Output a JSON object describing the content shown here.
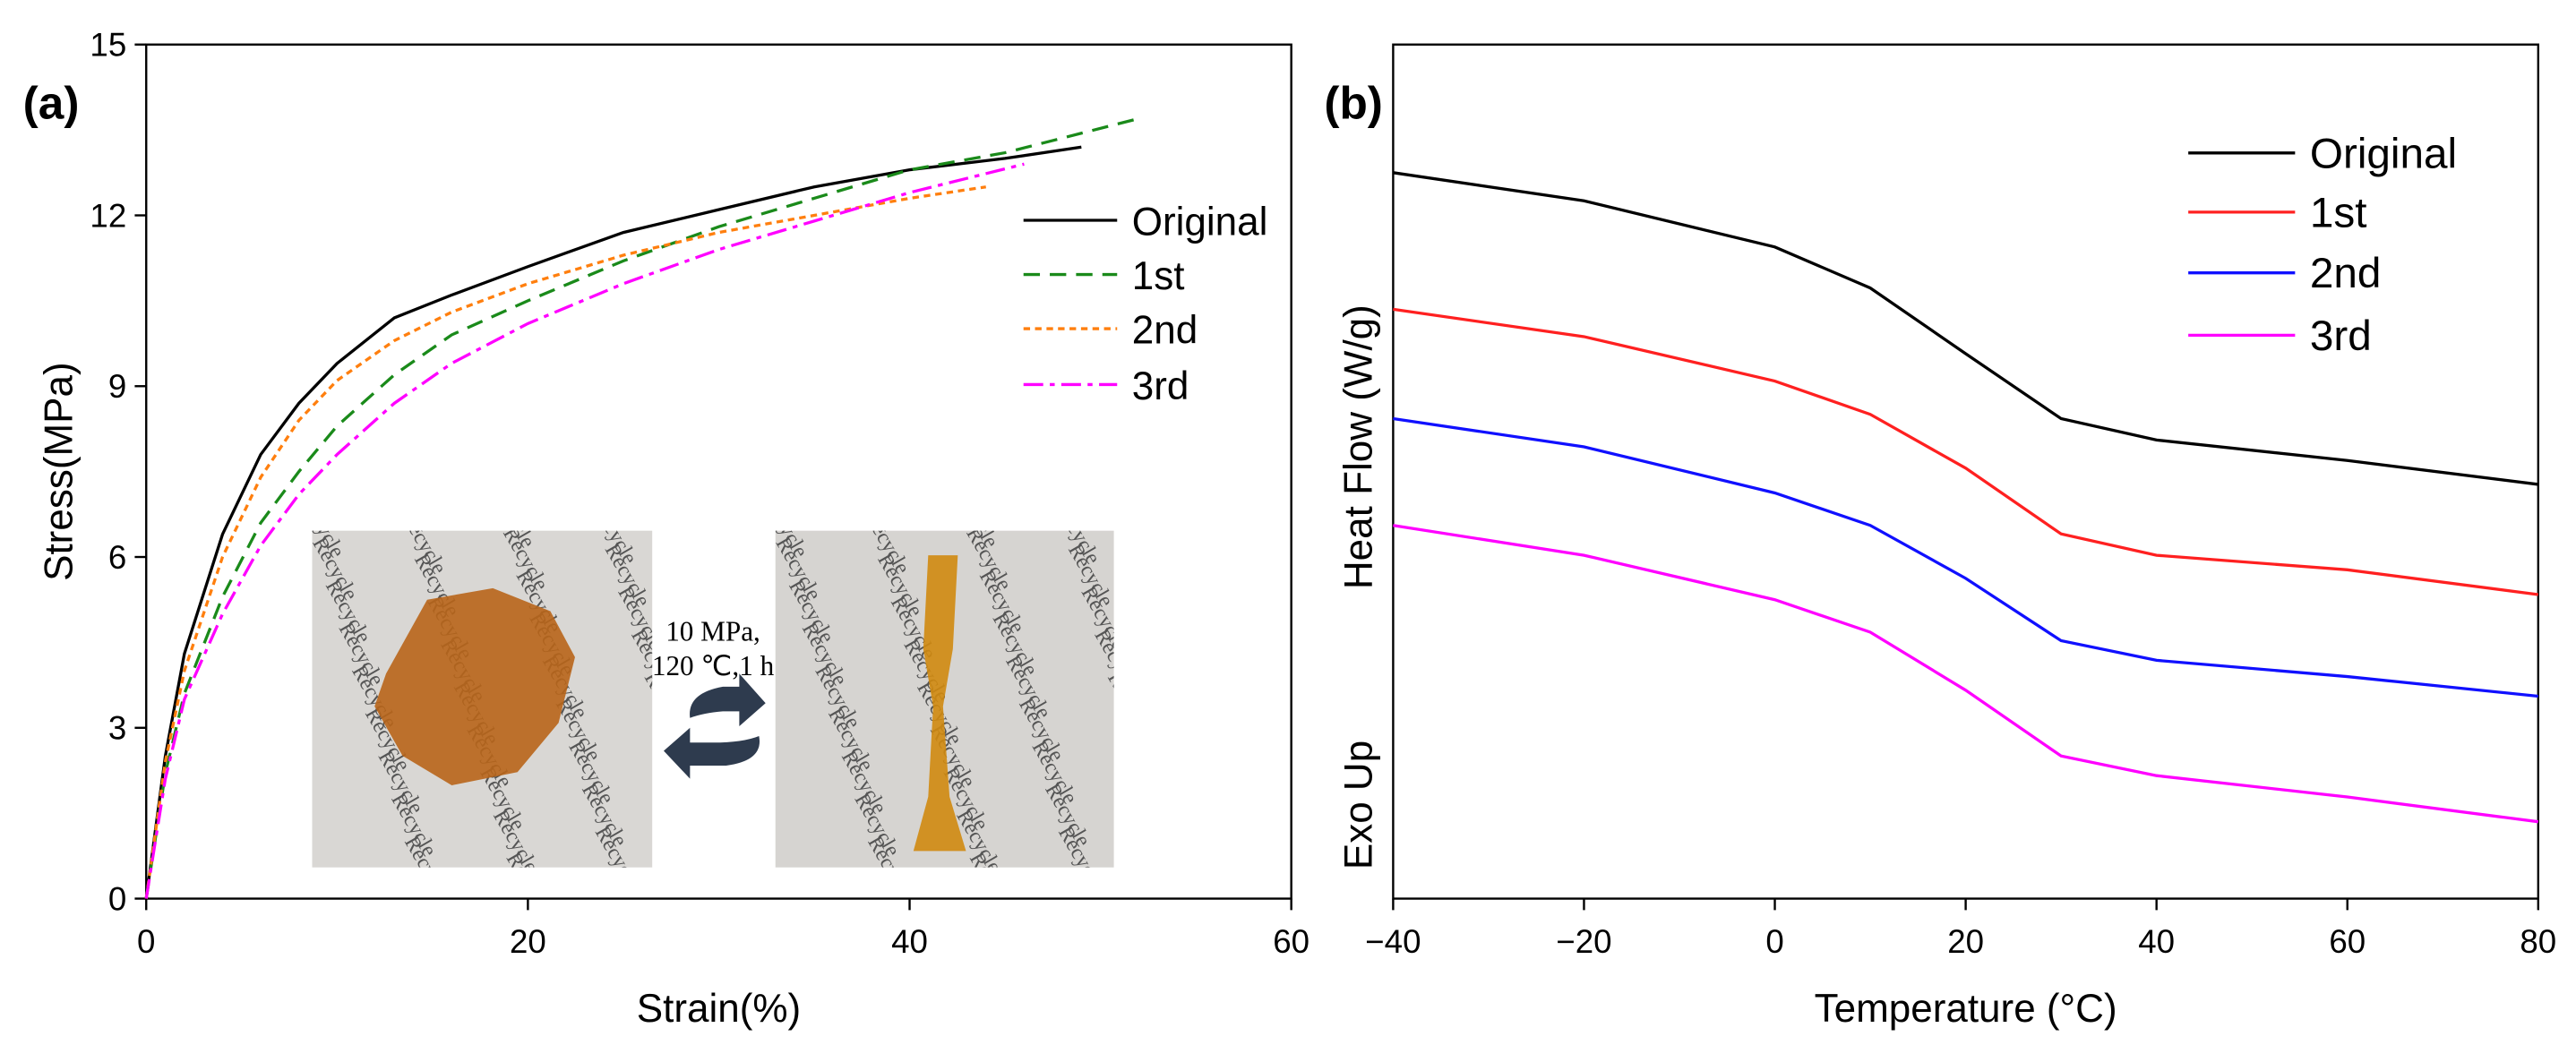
{
  "chart_data": [
    {
      "type": "line",
      "panel_label": "(a)",
      "xlabel": "Strain(%)",
      "ylabel": "Stress(MPa)",
      "xlim": [
        0,
        60
      ],
      "ylim": [
        0,
        15
      ],
      "xticks": [
        0,
        20,
        40,
        60
      ],
      "yticks": [
        0,
        3,
        6,
        9,
        12,
        15
      ],
      "annotations": [
        "10 MPa,",
        "120 ℃,1 h"
      ],
      "inset_watermark": "Recycle",
      "series": [
        {
          "name": "Original",
          "color": "#000000",
          "dash": "solid",
          "x": [
            0,
            1,
            2,
            4,
            6,
            8,
            10,
            13,
            16,
            20,
            25,
            30,
            35,
            40,
            45,
            49
          ],
          "values": [
            0,
            2.5,
            4.3,
            6.4,
            7.8,
            8.7,
            9.4,
            10.2,
            10.6,
            11.1,
            11.7,
            12.1,
            12.5,
            12.8,
            13.0,
            13.2
          ]
        },
        {
          "name": "1st",
          "color": "#1a8a1a",
          "dash": "dashed",
          "x": [
            0,
            1,
            2,
            4,
            6,
            8,
            10,
            13,
            16,
            20,
            25,
            30,
            35,
            40,
            45,
            52
          ],
          "values": [
            0,
            2.2,
            3.6,
            5.3,
            6.6,
            7.5,
            8.3,
            9.2,
            9.9,
            10.5,
            11.2,
            11.8,
            12.3,
            12.8,
            13.1,
            13.7
          ]
        },
        {
          "name": "2nd",
          "color": "#ff7f0e",
          "dash": "dotted",
          "x": [
            0,
            1,
            2,
            4,
            6,
            8,
            10,
            13,
            16,
            20,
            25,
            30,
            35,
            40,
            44
          ],
          "values": [
            0,
            2.4,
            4.0,
            6.0,
            7.4,
            8.4,
            9.1,
            9.8,
            10.3,
            10.8,
            11.3,
            11.7,
            12.0,
            12.3,
            12.5
          ]
        },
        {
          "name": "3rd",
          "color": "#ff00ff",
          "dash": "dashdot",
          "x": [
            0,
            1,
            2,
            4,
            6,
            8,
            10,
            13,
            16,
            20,
            25,
            30,
            35,
            40,
            46
          ],
          "values": [
            0,
            2.1,
            3.5,
            5.0,
            6.2,
            7.1,
            7.8,
            8.7,
            9.4,
            10.1,
            10.8,
            11.4,
            11.9,
            12.4,
            12.9
          ]
        }
      ]
    },
    {
      "type": "line",
      "panel_label": "(b)",
      "xlabel": "Temperature (°C)",
      "ylabel": "Heat Flow (W/g)",
      "ylabel2": "Exo Up",
      "xlim": [
        -40,
        80
      ],
      "ylim": [
        0,
        100
      ],
      "xticks": [
        {
          "value": -40,
          "label": "−40"
        },
        {
          "value": -20,
          "label": "−20"
        },
        0,
        20,
        40,
        60,
        80
      ],
      "x": [
        -40,
        -20,
        0,
        10,
        20,
        30,
        40,
        60,
        80
      ],
      "series": [
        {
          "name": "Original",
          "color": "#000000",
          "dash": "solid",
          "values": [
            85,
            81.7,
            76.3,
            71.5,
            63.8,
            56.2,
            53.7,
            51.3,
            48.5
          ]
        },
        {
          "name": "1st",
          "color": "#ff2020",
          "dash": "solid",
          "values": [
            69,
            65.8,
            60.6,
            56.7,
            50.4,
            42.7,
            40.2,
            38.5,
            35.6
          ]
        },
        {
          "name": "2nd",
          "color": "#1010ff",
          "dash": "solid",
          "values": [
            56.2,
            52.9,
            47.5,
            43.7,
            37.5,
            30.2,
            27.9,
            26,
            23.7
          ]
        },
        {
          "name": "3rd",
          "color": "#ff00ff",
          "dash": "solid",
          "values": [
            43.7,
            40.2,
            35,
            31.2,
            24.4,
            16.7,
            14.4,
            11.9,
            9
          ]
        }
      ]
    }
  ]
}
